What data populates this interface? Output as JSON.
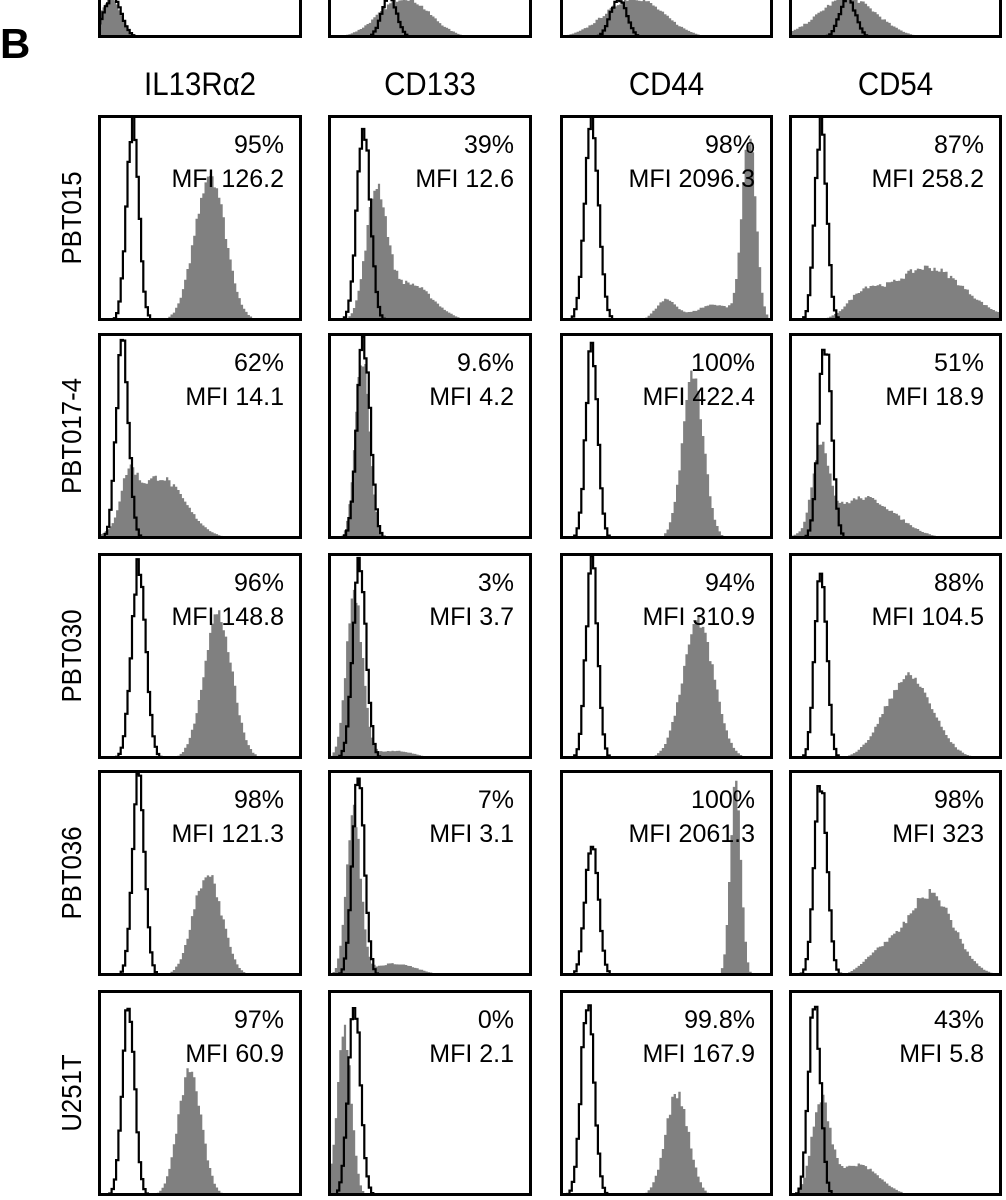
{
  "panel_letter": "B",
  "chart_data": {
    "type": "histogram-grid",
    "x_scale": "log",
    "x_range_decades": [
      0,
      4
    ],
    "legend": "none",
    "colors": {
      "stained_fill": "#808080",
      "isotype_line": "#000000"
    },
    "top_row_partial": [
      {
        "isotype": [
          {
            "mu": 0.28,
            "sd": 0.18,
            "h": 1.0
          }
        ],
        "stained": [
          {
            "mu": 0.25,
            "sd": 0.2,
            "h": 1.0
          }
        ]
      },
      {
        "isotype": [
          {
            "mu": 1.2,
            "sd": 0.15,
            "h": 1.0
          }
        ],
        "stained": [
          {
            "mu": 1.5,
            "sd": 0.5,
            "h": 1.0
          }
        ]
      },
      {
        "isotype": [
          {
            "mu": 1.1,
            "sd": 0.15,
            "h": 1.0
          }
        ],
        "stained": [
          {
            "mu": 1.4,
            "sd": 0.55,
            "h": 1.0
          }
        ]
      },
      {
        "isotype": [
          {
            "mu": 1.1,
            "sd": 0.15,
            "h": 1.0
          }
        ],
        "stained": [
          {
            "mu": 1.1,
            "sd": 0.55,
            "h": 1.0
          }
        ]
      }
    ],
    "columns": [
      "IL13Rα2",
      "CD133",
      "CD44",
      "CD54"
    ],
    "rows": [
      {
        "label": "PBT015",
        "panels": [
          {
            "percent": "95%",
            "mfi": "MFI 126.2",
            "isotype": [
              {
                "mu": 0.68,
                "sd": 0.12,
                "h": 0.95
              }
            ],
            "stained": [
              {
                "mu": 2.2,
                "sd": 0.3,
                "h": 0.72
              }
            ]
          },
          {
            "percent": "39%",
            "mfi": "MFI 12.6",
            "isotype": [
              {
                "mu": 0.7,
                "sd": 0.13,
                "h": 0.95
              }
            ],
            "stained": [
              {
                "mu": 0.95,
                "sd": 0.2,
                "h": 0.6
              },
              {
                "mu": 1.6,
                "sd": 0.45,
                "h": 0.18
              }
            ]
          },
          {
            "percent": "98%",
            "mfi": "MFI 2096.3",
            "isotype": [
              {
                "mu": 0.6,
                "sd": 0.13,
                "h": 0.95
              }
            ],
            "stained": [
              {
                "mu": 3.55,
                "sd": 0.13,
                "h": 0.9
              },
              {
                "mu": 2.0,
                "sd": 0.2,
                "h": 0.1
              },
              {
                "mu": 2.9,
                "sd": 0.35,
                "h": 0.08
              }
            ]
          },
          {
            "percent": "87%",
            "mfi": "MFI 258.2",
            "isotype": [
              {
                "mu": 0.6,
                "sd": 0.11,
                "h": 0.95
              }
            ],
            "stained": [
              {
                "mu": 2.6,
                "sd": 0.7,
                "h": 0.26
              },
              {
                "mu": 1.4,
                "sd": 0.3,
                "h": 0.1
              }
            ]
          }
        ]
      },
      {
        "label": "PBT017-4",
        "panels": [
          {
            "percent": "62%",
            "mfi": "MFI 14.1",
            "isotype": [
              {
                "mu": 0.48,
                "sd": 0.12,
                "h": 0.95
              }
            ],
            "stained": [
              {
                "mu": 1.2,
                "sd": 0.5,
                "h": 0.3
              },
              {
                "mu": 0.6,
                "sd": 0.15,
                "h": 0.2
              }
            ]
          },
          {
            "percent": "9.6%",
            "mfi": "MFI 4.2",
            "isotype": [
              {
                "mu": 0.7,
                "sd": 0.13,
                "h": 0.95
              }
            ],
            "stained": [
              {
                "mu": 0.68,
                "sd": 0.14,
                "h": 0.88
              }
            ]
          },
          {
            "percent": "100%",
            "mfi": "MFI 422.4",
            "isotype": [
              {
                "mu": 0.6,
                "sd": 0.11,
                "h": 0.95
              }
            ],
            "stained": [
              {
                "mu": 2.5,
                "sd": 0.2,
                "h": 0.8
              }
            ]
          },
          {
            "percent": "51%",
            "mfi": "MFI 18.9",
            "isotype": [
              {
                "mu": 0.68,
                "sd": 0.12,
                "h": 0.95
              }
            ],
            "stained": [
              {
                "mu": 0.6,
                "sd": 0.15,
                "h": 0.4
              },
              {
                "mu": 1.4,
                "sd": 0.6,
                "h": 0.2
              }
            ]
          }
        ]
      },
      {
        "label": "PBT030",
        "panels": [
          {
            "percent": "96%",
            "mfi": "MFI 148.8",
            "isotype": [
              {
                "mu": 0.8,
                "sd": 0.14,
                "h": 0.95
              }
            ],
            "stained": [
              {
                "mu": 2.35,
                "sd": 0.28,
                "h": 0.7
              }
            ]
          },
          {
            "percent": "3%",
            "mfi": "MFI 3.7",
            "isotype": [
              {
                "mu": 0.62,
                "sd": 0.13,
                "h": 0.95
              }
            ],
            "stained": [
              {
                "mu": 0.52,
                "sd": 0.16,
                "h": 0.8
              },
              {
                "mu": 1.3,
                "sd": 0.4,
                "h": 0.04
              }
            ]
          },
          {
            "percent": "94%",
            "mfi": "MFI 310.9",
            "isotype": [
              {
                "mu": 0.6,
                "sd": 0.11,
                "h": 0.95
              }
            ],
            "stained": [
              {
                "mu": 2.6,
                "sd": 0.3,
                "h": 0.66
              }
            ]
          },
          {
            "percent": "88%",
            "mfi": "MFI 104.5",
            "isotype": [
              {
                "mu": 0.6,
                "sd": 0.11,
                "h": 0.95
              }
            ],
            "stained": [
              {
                "mu": 2.25,
                "sd": 0.45,
                "h": 0.4
              }
            ]
          }
        ]
      },
      {
        "label": "PBT036",
        "panels": [
          {
            "percent": "98%",
            "mfi": "MFI 121.3",
            "isotype": [
              {
                "mu": 0.8,
                "sd": 0.12,
                "h": 0.95
              }
            ],
            "stained": [
              {
                "mu": 2.15,
                "sd": 0.28,
                "h": 0.5
              }
            ]
          },
          {
            "percent": "7%",
            "mfi": "MFI 3.1",
            "isotype": [
              {
                "mu": 0.6,
                "sd": 0.12,
                "h": 0.95
              }
            ],
            "stained": [
              {
                "mu": 0.5,
                "sd": 0.14,
                "h": 0.8
              },
              {
                "mu": 1.3,
                "sd": 0.45,
                "h": 0.06
              }
            ]
          },
          {
            "percent": "100%",
            "mfi": "MFI 2061.3",
            "isotype": [
              {
                "mu": 0.6,
                "sd": 0.12,
                "h": 0.66
              }
            ],
            "stained": [
              {
                "mu": 3.3,
                "sd": 0.1,
                "h": 0.98
              }
            ]
          },
          {
            "percent": "98%",
            "mfi": "MFI 323",
            "isotype": [
              {
                "mu": 0.6,
                "sd": 0.12,
                "h": 0.95
              }
            ],
            "stained": [
              {
                "mu": 2.65,
                "sd": 0.45,
                "h": 0.4
              },
              {
                "mu": 1.7,
                "sd": 0.3,
                "h": 0.1
              }
            ]
          }
        ]
      },
      {
        "label": "U251T",
        "panels": [
          {
            "percent": "97%",
            "mfi": "MFI 60.9",
            "isotype": [
              {
                "mu": 0.6,
                "sd": 0.12,
                "h": 0.95
              }
            ],
            "stained": [
              {
                "mu": 1.8,
                "sd": 0.23,
                "h": 0.6
              }
            ]
          },
          {
            "percent": "0%",
            "mfi": "MFI 2.1",
            "isotype": [
              {
                "mu": 0.52,
                "sd": 0.12,
                "h": 0.95
              }
            ],
            "stained": [
              {
                "mu": 0.32,
                "sd": 0.14,
                "h": 0.8
              }
            ]
          },
          {
            "percent": "99.8%",
            "mfi": "MFI 167.9",
            "isotype": [
              {
                "mu": 0.52,
                "sd": 0.12,
                "h": 0.95
              }
            ],
            "stained": [
              {
                "mu": 2.2,
                "sd": 0.22,
                "h": 0.5
              }
            ]
          },
          {
            "percent": "43%",
            "mfi": "MFI 5.8",
            "isotype": [
              {
                "mu": 0.48,
                "sd": 0.11,
                "h": 0.95
              }
            ],
            "stained": [
              {
                "mu": 0.6,
                "sd": 0.17,
                "h": 0.45
              },
              {
                "mu": 1.3,
                "sd": 0.4,
                "h": 0.15
              }
            ]
          }
        ]
      }
    ]
  }
}
